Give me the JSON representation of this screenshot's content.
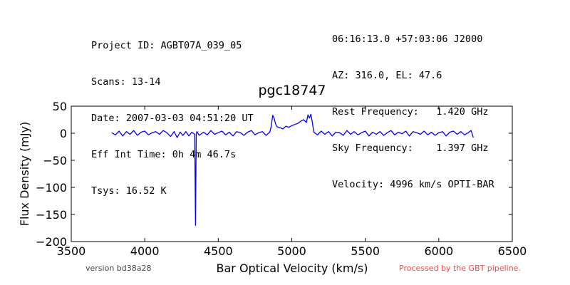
{
  "header": {
    "left": [
      "Project ID: AGBT07A_039_05",
      "Scans: 13-14",
      "Date: 2007-03-03 04:51:20 UT",
      "Eff Int Time: 0h 4m 46.7s",
      "Tsys: 16.52 K"
    ],
    "right": [
      "06:16:13.0 +57:03:06 J2000",
      "AZ: 316.0, EL: 47.6",
      "Rest Frequency:   1.420 GHz",
      "Sky Frequency:    1.397 GHz",
      "Velocity: 4996 km/s OPTI-BAR"
    ]
  },
  "footer": {
    "version": "version bd38a28",
    "processed": "Processed by the GBT pipeline.",
    "processed_color": "#e84a4a",
    "version_color": "#444444"
  },
  "chart_data": {
    "type": "line",
    "title": "pgc18747",
    "xlabel": "Bar Optical Velocity (km/s)",
    "ylabel": "Flux Density (mJy)",
    "xlim": [
      3500,
      6500
    ],
    "ylim": [
      -200,
      50
    ],
    "xticks": [
      3500,
      4000,
      4500,
      5000,
      5500,
      6000,
      6500
    ],
    "yticks": [
      50,
      0,
      -50,
      -100,
      -150,
      -200
    ],
    "grid": false,
    "series": [
      {
        "color": "#0000ff",
        "x": [
          3775,
          3800,
          3825,
          3850,
          3875,
          3900,
          3925,
          3950,
          3975,
          4000,
          4025,
          4050,
          4075,
          4100,
          4125,
          4150,
          4175,
          4200,
          4220,
          4240,
          4260,
          4280,
          4300,
          4320,
          4340,
          4345,
          4350,
          4355,
          4370,
          4400,
          4425,
          4450,
          4475,
          4500,
          4525,
          4550,
          4575,
          4600,
          4625,
          4650,
          4675,
          4700,
          4725,
          4750,
          4775,
          4800,
          4825,
          4850,
          4860,
          4870,
          4880,
          4890,
          4900,
          4920,
          4940,
          4960,
          4980,
          5000,
          5020,
          5040,
          5060,
          5080,
          5100,
          5110,
          5120,
          5130,
          5140,
          5150,
          5175,
          5200,
          5225,
          5250,
          5275,
          5300,
          5325,
          5350,
          5375,
          5400,
          5425,
          5450,
          5475,
          5500,
          5525,
          5550,
          5575,
          5600,
          5625,
          5650,
          5675,
          5700,
          5725,
          5750,
          5775,
          5800,
          5825,
          5850,
          5875,
          5900,
          5925,
          5950,
          5975,
          6000,
          6025,
          6050,
          6075,
          6100,
          6125,
          6150,
          6175,
          6200,
          6220,
          6235
        ],
        "y": [
          1,
          -3,
          4,
          -5,
          3,
          -2,
          5,
          -4,
          2,
          4,
          -3,
          1,
          3,
          -2,
          5,
          1,
          -6,
          3,
          -8,
          2,
          -4,
          3,
          -5,
          2,
          -2,
          -170,
          -2,
          3,
          -4,
          2,
          -3,
          5,
          -2,
          1,
          4,
          -3,
          2,
          -5,
          3,
          1,
          -4,
          2,
          5,
          -3,
          1,
          3,
          -4,
          2,
          12,
          33,
          28,
          17,
          12,
          10,
          8,
          13,
          11,
          14,
          16,
          18,
          22,
          25,
          20,
          34,
          28,
          35,
          20,
          2,
          -3,
          4,
          -2,
          3,
          -5,
          2,
          1,
          -4,
          5,
          -2,
          3,
          -3,
          1,
          4,
          -5,
          2,
          -2,
          3,
          -4,
          1,
          5,
          -3,
          2,
          -1,
          4,
          -5,
          3,
          1,
          -2,
          4,
          -3,
          2,
          -4,
          1,
          3,
          -5,
          2,
          4,
          -2,
          3,
          -3,
          1,
          5,
          -8
        ]
      }
    ]
  }
}
